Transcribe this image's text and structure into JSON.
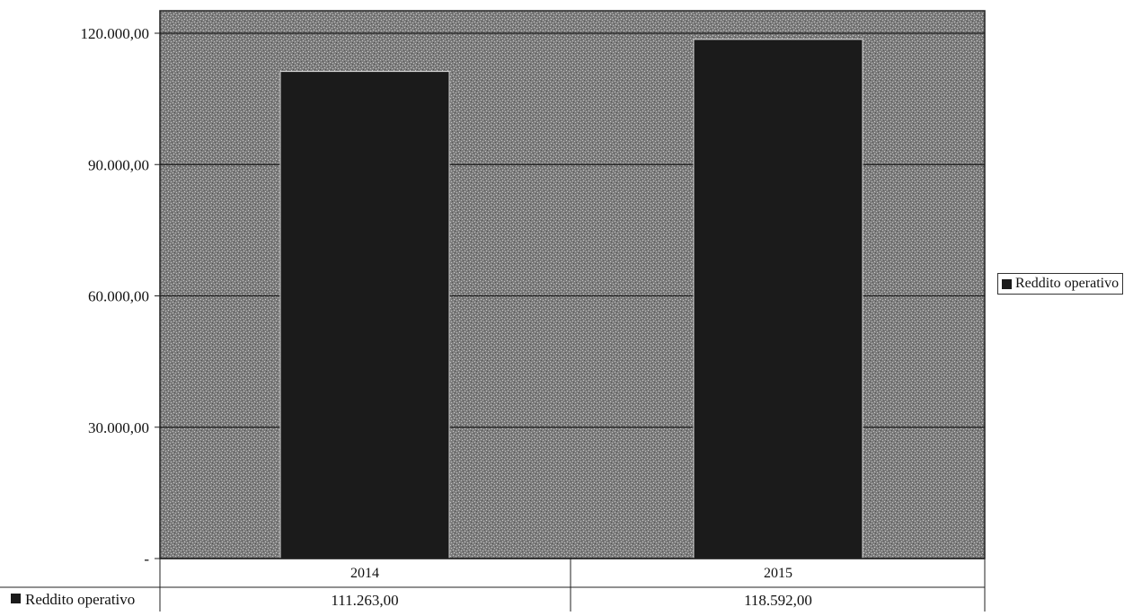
{
  "chart_data": {
    "type": "bar",
    "categories": [
      "2014",
      "2015"
    ],
    "series": [
      {
        "name": "Reddito operativo",
        "values": [
          111263,
          118592
        ]
      }
    ],
    "value_labels": [
      "111.263,00",
      "118.592,00"
    ],
    "y_ticks": [
      {
        "value": 0,
        "label": "-"
      },
      {
        "value": 30000,
        "label": "30.000,00"
      },
      {
        "value": 60000,
        "label": "60.000,00"
      },
      {
        "value": 90000,
        "label": "90.000,00"
      },
      {
        "value": 120000,
        "label": "120.000,00"
      }
    ],
    "ylim": [
      0,
      125000
    ],
    "grid": true,
    "legend_position": "right",
    "data_table": true,
    "colors": {
      "bar": "#1b1b1b",
      "plot_background": "#8a8a8a",
      "gridline": "#1a1a1a"
    }
  }
}
